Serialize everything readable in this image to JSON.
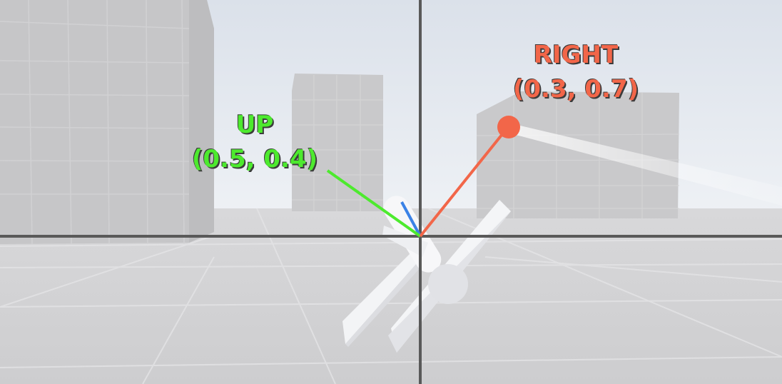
{
  "scene": {
    "sky_color": "#dde3ec",
    "floor_color": "#cfcfd1",
    "building_color": "#c7c7c9",
    "crosshair_color": "#595959"
  },
  "vectors": {
    "up": {
      "label": "UP",
      "value": "(0.5, 0.4)",
      "color": "#4dea2e"
    },
    "right": {
      "label": "RIGHT",
      "value": "(0.3, 0.7)",
      "color": "#f26649"
    },
    "forward": {
      "color": "#3b82e6"
    }
  }
}
